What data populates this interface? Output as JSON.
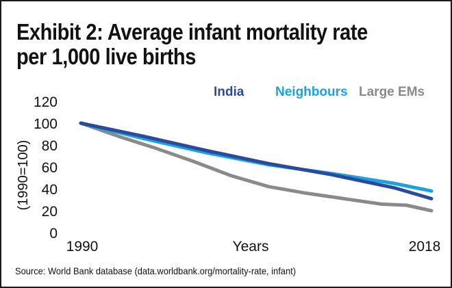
{
  "title_lines": [
    "Exhibit 2: Average infant mortality rate",
    "per 1,000 live births"
  ],
  "source": "Source: World Bank database (data.worldbank.org/mortality-rate, infant)",
  "chart_data": {
    "type": "line",
    "title": "Exhibit 2: Average infant mortality rate per 1,000 live births",
    "xlabel": "Years",
    "ylabel": "(1990=100)",
    "x_tick_labels": [
      "1990",
      "2018"
    ],
    "xlim": [
      1990,
      2018
    ],
    "ylim": [
      0,
      120
    ],
    "y_ticks": [
      0,
      20,
      40,
      60,
      80,
      100,
      120
    ],
    "grid": false,
    "legend_position": "top-right",
    "series": [
      {
        "name": "India",
        "color": "#2a4a9c",
        "x": [
          1990,
          1995,
          2000,
          2005,
          2010,
          2015,
          2018
        ],
        "values": [
          100,
          88,
          75,
          63,
          53,
          41,
          31
        ]
      },
      {
        "name": "Neighbours",
        "color": "#1aa3df",
        "x": [
          1990,
          1995,
          2000,
          2005,
          2010,
          2015,
          2018
        ],
        "values": [
          100,
          86,
          73,
          62,
          54,
          45,
          38
        ]
      },
      {
        "name": "Large EMs",
        "color": "#8a8a8a",
        "x": [
          1990,
          1993,
          1996,
          1999,
          2002,
          2005,
          2008,
          2011,
          2014,
          2016,
          2018
        ],
        "values": [
          100,
          88,
          77,
          65,
          52,
          42,
          36,
          31,
          26,
          25,
          20
        ]
      }
    ]
  }
}
